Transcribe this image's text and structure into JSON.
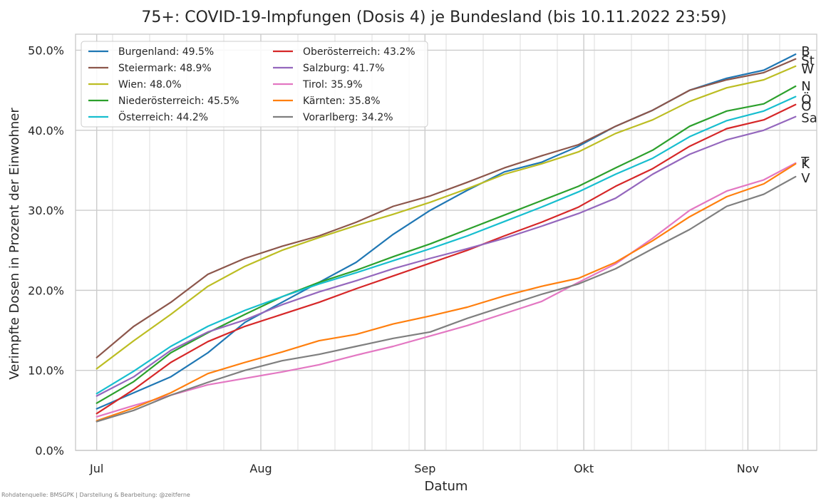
{
  "chart_data": {
    "type": "line",
    "title": "75+: COVID-19-Impfungen (Dosis 4) je Bundesland (bis 10.11.2022 23:59)",
    "xlabel": "Datum",
    "ylabel": "Verimpfte Dosen in Prozent der Einwohner",
    "source": "Rohdatenquelle: BMSGPK | Darstellung & Bearbeitung: @zeitferne",
    "ylim": [
      0,
      52
    ],
    "yticks": [
      {
        "value": 0,
        "label": "0.0%"
      },
      {
        "value": 10,
        "label": "10.0%"
      },
      {
        "value": 20,
        "label": "20.0%"
      },
      {
        "value": 30,
        "label": "30.0%"
      },
      {
        "value": 40,
        "label": "40.0%"
      },
      {
        "value": 50,
        "label": "50.0%"
      }
    ],
    "xlim": [
      "2022-06-27",
      "2022-11-14"
    ],
    "xticks": [
      {
        "date": "2022-07-01",
        "label": "Jul"
      },
      {
        "date": "2022-08-01",
        "label": "Aug"
      },
      {
        "date": "2022-09-01",
        "label": "Sep"
      },
      {
        "date": "2022-10-01",
        "label": "Okt"
      },
      {
        "date": "2022-11-01",
        "label": "Nov"
      }
    ],
    "minor_x_gridlines": [
      "2022-07-04",
      "2022-07-11",
      "2022-07-18",
      "2022-07-25",
      "2022-08-08",
      "2022-08-15",
      "2022-08-22",
      "2022-08-29",
      "2022-09-05",
      "2022-09-12",
      "2022-09-19",
      "2022-09-26",
      "2022-10-03",
      "2022-10-10",
      "2022-10-17",
      "2022-10-24",
      "2022-10-31",
      "2022-11-07"
    ],
    "grid": true,
    "legend_position": "top-left",
    "x": [
      "2022-07-01",
      "2022-07-08",
      "2022-07-15",
      "2022-07-22",
      "2022-07-29",
      "2022-08-05",
      "2022-08-12",
      "2022-08-19",
      "2022-08-26",
      "2022-09-02",
      "2022-09-09",
      "2022-09-16",
      "2022-09-23",
      "2022-09-30",
      "2022-10-07",
      "2022-10-14",
      "2022-10-21",
      "2022-10-28",
      "2022-11-04",
      "2022-11-10"
    ],
    "series": [
      {
        "name": "Burgenland",
        "legend": "Burgenland: 49.5%",
        "end_label": "B",
        "color": "#1f77b4",
        "values": [
          5.2,
          7.2,
          9.2,
          12.2,
          16.0,
          18.5,
          21.0,
          23.5,
          27.0,
          30.0,
          32.5,
          34.8,
          36.0,
          38.0,
          40.5,
          42.5,
          45.0,
          46.5,
          47.5,
          49.5
        ]
      },
      {
        "name": "Steiermark",
        "legend": "Steiermark: 48.9%",
        "end_label": "St",
        "color": "#8c564b",
        "values": [
          11.6,
          15.5,
          18.5,
          22.0,
          24.0,
          25.5,
          26.8,
          28.5,
          30.5,
          31.8,
          33.5,
          35.3,
          36.8,
          38.2,
          40.5,
          42.5,
          45.0,
          46.3,
          47.2,
          48.9
        ]
      },
      {
        "name": "Wien",
        "legend": "Wien: 48.0%",
        "end_label": "W",
        "color": "#bcbd22",
        "values": [
          10.2,
          13.7,
          17.0,
          20.5,
          23.0,
          25.0,
          26.6,
          28.1,
          29.5,
          31.0,
          32.7,
          34.5,
          35.8,
          37.3,
          39.6,
          41.3,
          43.6,
          45.3,
          46.3,
          48.0
        ]
      },
      {
        "name": "Niederösterreich",
        "legend": "Niederösterreich: 45.5%",
        "end_label": "N",
        "color": "#2ca02c",
        "values": [
          5.9,
          8.6,
          12.2,
          14.7,
          17.0,
          19.2,
          21.0,
          22.5,
          24.2,
          25.8,
          27.6,
          29.4,
          31.2,
          33.0,
          35.3,
          37.5,
          40.5,
          42.4,
          43.3,
          45.5
        ]
      },
      {
        "name": "Österreich",
        "legend": "Österreich: 44.2%",
        "end_label": "Ö",
        "color": "#17becf",
        "values": [
          7.1,
          9.9,
          13.0,
          15.5,
          17.5,
          19.2,
          20.8,
          22.2,
          23.7,
          25.2,
          26.8,
          28.6,
          30.4,
          32.3,
          34.5,
          36.5,
          39.2,
          41.2,
          42.4,
          44.2
        ]
      },
      {
        "name": "Oberösterreich",
        "legend": "Oberösterreich: 43.2%",
        "end_label": "O",
        "color": "#d62728",
        "values": [
          4.6,
          7.6,
          11.0,
          13.6,
          15.5,
          17.0,
          18.5,
          20.2,
          21.8,
          23.4,
          25.0,
          26.8,
          28.5,
          30.4,
          33.0,
          35.2,
          38.0,
          40.2,
          41.3,
          43.2
        ]
      },
      {
        "name": "Salzburg",
        "legend": "Salzburg: 41.7%",
        "end_label": "Sa",
        "color": "#9467bd",
        "values": [
          6.8,
          9.2,
          12.5,
          14.8,
          16.3,
          18.2,
          19.8,
          21.2,
          22.7,
          24.0,
          25.2,
          26.5,
          28.0,
          29.6,
          31.5,
          34.5,
          37.0,
          38.8,
          40.0,
          41.7
        ]
      },
      {
        "name": "Tirol",
        "legend": "Tirol: 35.9%",
        "end_label": "T",
        "color": "#e377c2",
        "values": [
          4.2,
          5.6,
          6.9,
          8.2,
          9.0,
          9.8,
          10.7,
          11.9,
          13.0,
          14.3,
          15.6,
          17.1,
          18.6,
          21.0,
          23.3,
          26.5,
          30.0,
          32.4,
          33.8,
          35.9
        ]
      },
      {
        "name": "Kärnten",
        "legend": "Kärnten: 35.8%",
        "end_label": "K",
        "color": "#ff7f0e",
        "values": [
          3.7,
          5.3,
          7.2,
          9.6,
          11.0,
          12.3,
          13.7,
          14.5,
          15.8,
          16.8,
          17.9,
          19.3,
          20.5,
          21.5,
          23.5,
          26.2,
          29.2,
          31.7,
          33.3,
          35.8
        ]
      },
      {
        "name": "Vorarlberg",
        "legend": "Vorarlberg: 34.2%",
        "end_label": "V",
        "color": "#7f7f7f",
        "values": [
          3.6,
          5.0,
          6.9,
          8.5,
          10.0,
          11.2,
          12.0,
          13.0,
          14.0,
          14.8,
          16.5,
          18.0,
          19.5,
          20.8,
          22.7,
          25.2,
          27.6,
          30.5,
          32.0,
          34.2
        ]
      }
    ]
  }
}
